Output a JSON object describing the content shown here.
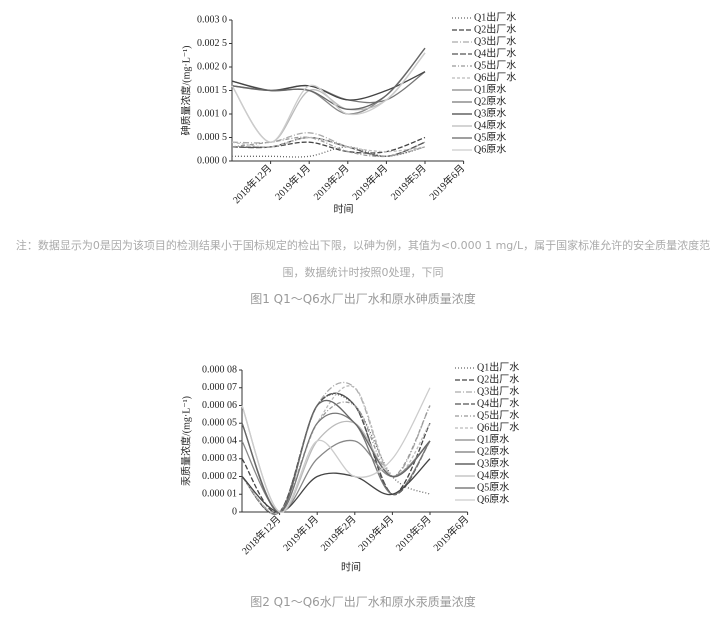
{
  "chart_data": [
    {
      "type": "line",
      "y_label": "砷质量浓度/(mg·L⁻¹)",
      "x_label": "时间",
      "caption": "图1 Q1～Q6水厂出厂水和原水砷质量浓度",
      "categories": [
        "2018年12月",
        "2019年1月",
        "2019年2月",
        "2019年4月",
        "2019年5月",
        "2019年6月"
      ],
      "ylim": [
        0,
        0.003
      ],
      "yticks": [
        {
          "value": 0,
          "label": "0.000 0"
        },
        {
          "value": 0.0005,
          "label": "0.000 5"
        },
        {
          "value": 0.001,
          "label": "0.001 0"
        },
        {
          "value": 0.0015,
          "label": "0.001 5"
        },
        {
          "value": 0.002,
          "label": "0.002 0"
        },
        {
          "value": 0.0025,
          "label": "0.002 5"
        },
        {
          "value": 0.003,
          "label": "0.003 0"
        }
      ],
      "series": [
        {
          "name": "Q1出厂水",
          "color": "#666",
          "dash": "1 2",
          "values": [
            0.0001,
            0.0001,
            0.0001,
            0.0003,
            0.0001,
            0.0003
          ]
        },
        {
          "name": "Q2出厂水",
          "color": "#444",
          "dash": "5 2",
          "values": [
            0.0003,
            0.0003,
            0.0004,
            0.0002,
            0.0002,
            0.0005
          ]
        },
        {
          "name": "Q3出厂水",
          "color": "#aaa",
          "dash": "6 2 1 2",
          "values": [
            0.0004,
            0.0004,
            0.0006,
            0.0003,
            0.0001,
            0.0004
          ]
        },
        {
          "name": "Q4出厂水",
          "color": "#555",
          "dash": "6 2",
          "values": [
            0.0003,
            0.0003,
            0.0005,
            0.0003,
            0.0001,
            0.0004
          ]
        },
        {
          "name": "Q5出厂水",
          "color": "#999",
          "dash": "4 2 1 2",
          "values": [
            0.0003,
            0.0004,
            0.0005,
            0.0002,
            0.0001,
            0.0003
          ]
        },
        {
          "name": "Q6出厂水",
          "color": "#bbb",
          "dash": "3 2",
          "values": [
            0.0004,
            0.0003,
            0.0005,
            0.0003,
            0.0002,
            0.0003
          ]
        },
        {
          "name": "Q1原水",
          "color": "#888",
          "dash": "",
          "values": [
            0.0017,
            0.0015,
            0.0015,
            0.001,
            0.0014,
            0.0024
          ]
        },
        {
          "name": "Q2原水",
          "color": "#777",
          "dash": "",
          "values": [
            0.0016,
            0.0015,
            0.0016,
            0.0013,
            0.0013,
            0.0019
          ]
        },
        {
          "name": "Q3原水",
          "color": "#444",
          "dash": "",
          "values": [
            0.0017,
            0.0015,
            0.0016,
            0.0013,
            0.0015,
            0.0019
          ]
        },
        {
          "name": "Q4原水",
          "color": "#bbb",
          "dash": "",
          "values": [
            0.0016,
            0.0004,
            0.0015,
            0.0011,
            0.0013,
            0.0023
          ]
        },
        {
          "name": "Q5原水",
          "color": "#666",
          "dash": "",
          "values": [
            0.0016,
            0.0015,
            0.0015,
            0.0011,
            0.0014,
            0.0024
          ]
        },
        {
          "name": "Q6原水",
          "color": "#ccc",
          "dash": "",
          "values": [
            0.0016,
            0.0004,
            0.0016,
            0.001,
            0.0013,
            0.0023
          ]
        }
      ]
    },
    {
      "type": "line",
      "y_label": "汞质量浓度/(mg·L⁻¹)",
      "x_label": "时间",
      "caption": "图2 Q1～Q6水厂出厂水和原水汞质量浓度",
      "categories": [
        "2018年12月",
        "2019年1月",
        "2019年2月",
        "2019年4月",
        "2019年5月",
        "2019年6月"
      ],
      "ylim": [
        0,
        8e-05
      ],
      "yticks": [
        0,
        {
          "value": 1e-05,
          "label": "0.000 01"
        },
        {
          "value": 2e-05,
          "label": "0.000 02"
        },
        {
          "value": 3e-05,
          "label": "0.000 03"
        },
        {
          "value": 4e-05,
          "label": "0.000 04"
        },
        {
          "value": 5e-05,
          "label": "0.000 05"
        },
        {
          "value": 6e-05,
          "label": "0.000 06"
        },
        {
          "value": 7e-05,
          "label": "0.000 07"
        },
        {
          "value": 8e-05,
          "label": "0.000 08"
        }
      ],
      "series": [
        {
          "name": "Q1出厂水",
          "color": "#666",
          "dash": "1 2",
          "values": [
            2e-05,
            0,
            6e-05,
            6e-05,
            2e-05,
            1e-05
          ]
        },
        {
          "name": "Q2出厂水",
          "color": "#444",
          "dash": "5 2",
          "values": [
            3e-05,
            0,
            6e-05,
            6e-05,
            1e-05,
            5e-05
          ]
        },
        {
          "name": "Q3出厂水",
          "color": "#aaa",
          "dash": "6 2 1 2",
          "values": [
            2e-05,
            0,
            6e-05,
            7e-05,
            2e-05,
            6e-05
          ]
        },
        {
          "name": "Q4出厂水",
          "color": "#555",
          "dash": "6 2",
          "values": [
            2e-05,
            0,
            6e-05,
            6e-05,
            1e-05,
            4e-05
          ]
        },
        {
          "name": "Q5出厂水",
          "color": "#999",
          "dash": "4 2 1 2",
          "values": [
            2e-05,
            0,
            5e-05,
            6e-05,
            2e-05,
            6e-05
          ]
        },
        {
          "name": "Q6出厂水",
          "color": "#bbb",
          "dash": "3 2",
          "values": [
            2e-05,
            0,
            5e-05,
            7e-05,
            2e-05,
            5e-05
          ]
        },
        {
          "name": "Q1原水",
          "color": "#888",
          "dash": "",
          "values": [
            4e-05,
            0,
            3e-05,
            4e-05,
            2e-05,
            4e-05
          ]
        },
        {
          "name": "Q2原水",
          "color": "#777",
          "dash": "",
          "values": [
            5e-05,
            0,
            5e-05,
            5e-05,
            1e-05,
            4e-05
          ]
        },
        {
          "name": "Q3原水",
          "color": "#444",
          "dash": "",
          "values": [
            2e-05,
            0,
            2e-05,
            2e-05,
            1e-05,
            3e-05
          ]
        },
        {
          "name": "Q4原水",
          "color": "#bbb",
          "dash": "",
          "values": [
            6e-05,
            0,
            4e-05,
            5e-05,
            2e-05,
            4e-05
          ]
        },
        {
          "name": "Q5原水",
          "color": "#666",
          "dash": "",
          "values": [
            5e-05,
            0,
            6e-05,
            5e-05,
            2e-05,
            4e-05
          ]
        },
        {
          "name": "Q6原水",
          "color": "#ccc",
          "dash": "",
          "values": [
            6e-05,
            0,
            4e-05,
            2e-05,
            3e-05,
            7e-05
          ]
        }
      ]
    }
  ],
  "note": "注：数据显示为0是因为该项目的检测结果小于国标规定的检出下限，以砷为例，其值为<0.000 1 mg/L，属于国家标准允许的安全质量浓度范围，数据统计时按照0处理，下同"
}
